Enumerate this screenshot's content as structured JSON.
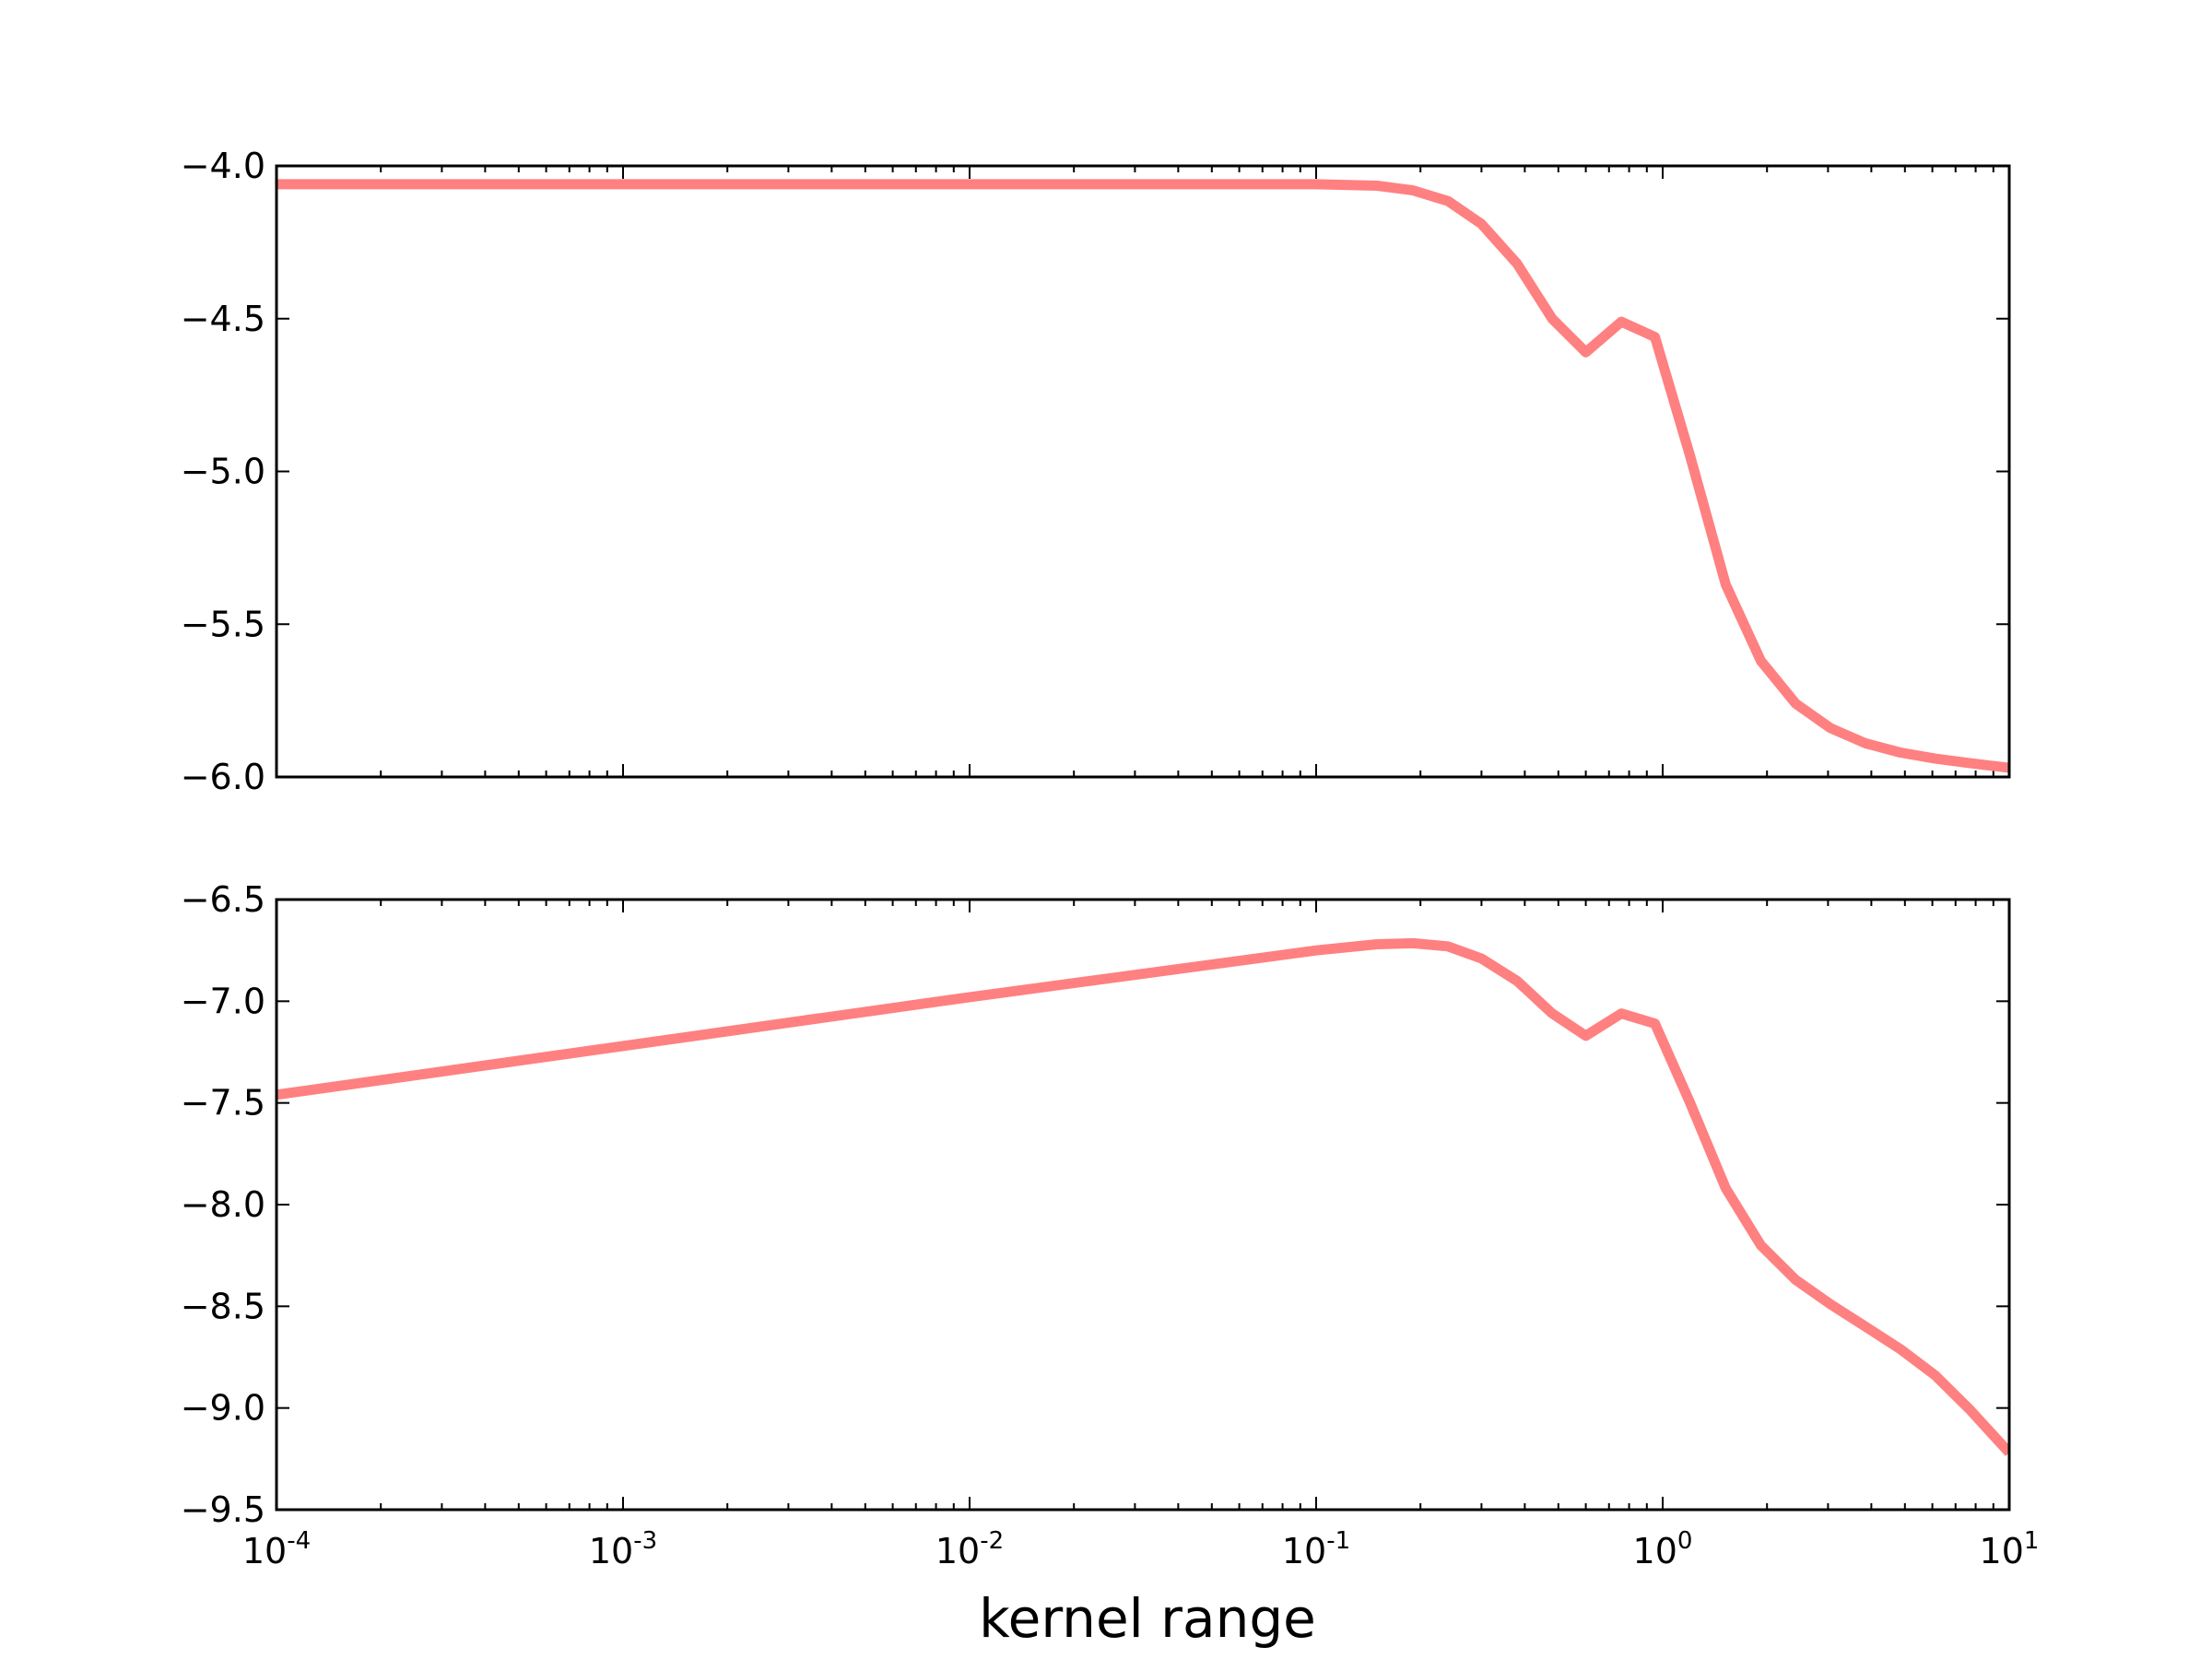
{
  "chart_data": [
    {
      "type": "line",
      "xscale": "log",
      "xlim": [
        0.0001,
        10
      ],
      "ylim": [
        -6.0,
        -4.0
      ],
      "yticks": [
        -6.0,
        -5.5,
        -5.0,
        -4.5,
        -4.0
      ],
      "ytick_labels": [
        "−6.0",
        "−5.5",
        "−5.0",
        "−4.5",
        "−4.0"
      ],
      "xlabel": "",
      "ylabel": "",
      "grid": false,
      "line_color": "#ff8080",
      "series": [
        {
          "x": [
            0.0001,
            0.001,
            0.01,
            0.1,
            0.15,
            0.19,
            0.24,
            0.3,
            0.38,
            0.48,
            0.6,
            0.76,
            0.95,
            1.2,
            1.52,
            1.92,
            2.42,
            3.05,
            3.85,
            4.85,
            6.12,
            7.72,
            10
          ],
          "values": [
            -4.06,
            -4.06,
            -4.06,
            -4.06,
            -4.065,
            -4.08,
            -4.115,
            -4.19,
            -4.32,
            -4.5,
            -4.61,
            -4.51,
            -4.56,
            -4.95,
            -5.37,
            -5.62,
            -5.76,
            -5.84,
            -5.89,
            -5.92,
            -5.94,
            -5.955,
            -5.97
          ]
        }
      ]
    },
    {
      "type": "line",
      "xscale": "log",
      "xlim": [
        0.0001,
        10
      ],
      "ylim": [
        -9.5,
        -6.5
      ],
      "yticks": [
        -9.5,
        -9.0,
        -8.5,
        -8.0,
        -7.5,
        -7.0,
        -6.5
      ],
      "ytick_labels": [
        "−9.5",
        "−9.0",
        "−8.5",
        "−8.0",
        "−7.5",
        "−7.0",
        "−6.5"
      ],
      "xticks": [
        0.0001,
        0.001,
        0.01,
        0.1,
        1,
        10
      ],
      "xtick_labels": [
        {
          "base": "10",
          "exp": "-4"
        },
        {
          "base": "10",
          "exp": "-3"
        },
        {
          "base": "10",
          "exp": "-2"
        },
        {
          "base": "10",
          "exp": "-1"
        },
        {
          "base": "10",
          "exp": "0"
        },
        {
          "base": "10",
          "exp": "1"
        }
      ],
      "xlabel": "kernel range",
      "ylabel": "",
      "grid": false,
      "line_color": "#ff8080",
      "series": [
        {
          "x": [
            0.0001,
            0.001,
            0.01,
            0.1,
            0.15,
            0.19,
            0.24,
            0.3,
            0.38,
            0.48,
            0.6,
            0.76,
            0.95,
            1.2,
            1.52,
            1.92,
            2.42,
            3.05,
            3.85,
            4.85,
            6.12,
            7.72,
            10
          ],
          "values": [
            -7.46,
            -7.22,
            -6.98,
            -6.75,
            -6.72,
            -6.715,
            -6.73,
            -6.79,
            -6.9,
            -7.06,
            -7.17,
            -7.06,
            -7.11,
            -7.5,
            -7.92,
            -8.2,
            -8.37,
            -8.49,
            -8.6,
            -8.71,
            -8.84,
            -9.01,
            -9.22
          ]
        }
      ]
    }
  ]
}
